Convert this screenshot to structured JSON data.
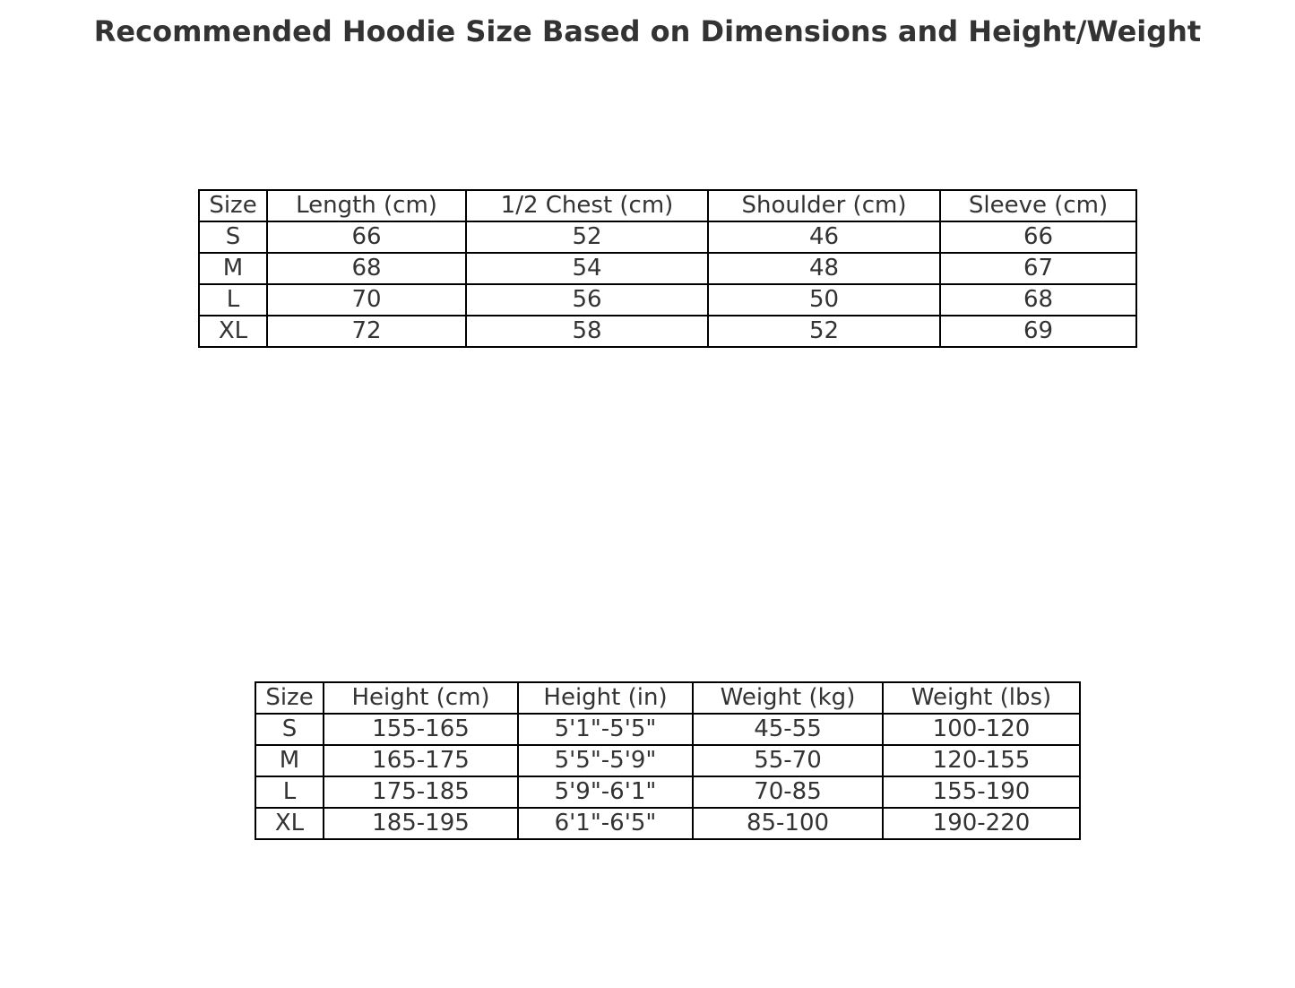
{
  "chart_data": [
    {
      "type": "table",
      "title": "Recommended Hoodie Size Based on Dimensions and Height/Weight",
      "columns": [
        "Size",
        "Length (cm)",
        "1/2 Chest (cm)",
        "Shoulder (cm)",
        "Sleeve (cm)"
      ],
      "rows": [
        [
          "S",
          "66",
          "52",
          "46",
          "66"
        ],
        [
          "M",
          "68",
          "54",
          "48",
          "67"
        ],
        [
          "L",
          "70",
          "56",
          "50",
          "68"
        ],
        [
          "XL",
          "72",
          "58",
          "52",
          "69"
        ]
      ]
    },
    {
      "type": "table",
      "columns": [
        "Size",
        "Height (cm)",
        "Height (in)",
        "Weight (kg)",
        "Weight (lbs)"
      ],
      "rows": [
        [
          "S",
          "155-165",
          "5'1\"-5'5\"",
          "45-55",
          "100-120"
        ],
        [
          "M",
          "165-175",
          "5'5\"-5'9\"",
          "55-70",
          "120-155"
        ],
        [
          "L",
          "175-185",
          "5'9\"-6'1\"",
          "70-85",
          "155-190"
        ],
        [
          "XL",
          "185-195",
          "6'1\"-6'5\"",
          "85-100",
          "190-220"
        ]
      ]
    }
  ]
}
